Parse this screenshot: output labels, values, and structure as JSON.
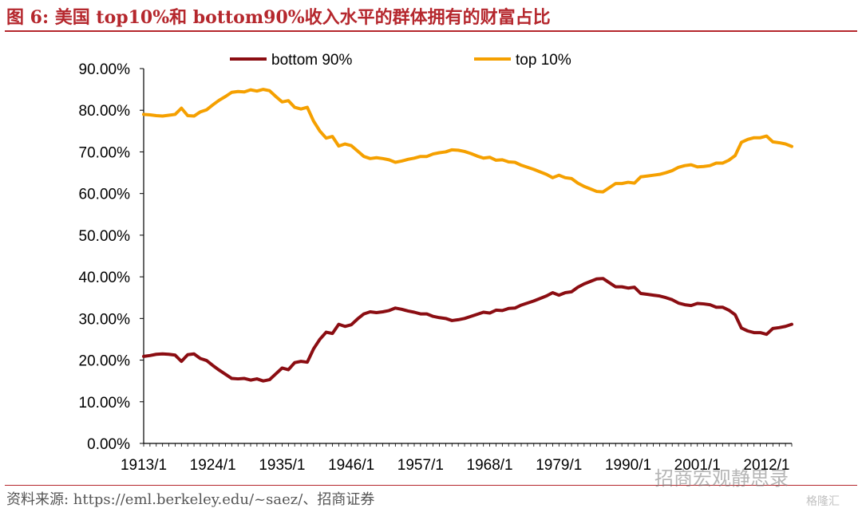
{
  "figure": {
    "title": "图 6:  美国 top10%和 bottom90%收入水平的群体拥有的财富占比",
    "source": "资料来源:  https://eml.berkeley.edu/~saez/、招商证券",
    "watermark": "招商宏观静思录",
    "watermark_corner": "格隆汇"
  },
  "chart_data": {
    "type": "line",
    "title": "",
    "xlabel": "",
    "ylabel": "",
    "x_range": [
      1913,
      2016
    ],
    "ylim": [
      0,
      90
    ],
    "grid": false,
    "legend": "top",
    "x_tick_labels": [
      "1913/1",
      "1924/1",
      "1935/1",
      "1946/1",
      "1957/1",
      "1968/1",
      "1979/1",
      "1990/1",
      "2001/1",
      "2012/1"
    ],
    "y_tick_labels": [
      "0.00%",
      "10.00%",
      "20.00%",
      "30.00%",
      "40.00%",
      "50.00%",
      "60.00%",
      "70.00%",
      "80.00%",
      "90.00%"
    ],
    "colors": {
      "bottom": "#8b0d12",
      "top": "#f5a000"
    },
    "series": [
      {
        "name": "bottom 90%",
        "x": [
          1913,
          1914,
          1915,
          1916,
          1917,
          1918,
          1919,
          1920,
          1921,
          1922,
          1923,
          1924,
          1925,
          1926,
          1927,
          1928,
          1929,
          1930,
          1931,
          1932,
          1933,
          1934,
          1935,
          1936,
          1937,
          1938,
          1939,
          1940,
          1941,
          1942,
          1943,
          1944,
          1945,
          1946,
          1947,
          1948,
          1949,
          1950,
          1951,
          1952,
          1953,
          1954,
          1955,
          1956,
          1957,
          1958,
          1959,
          1960,
          1961,
          1962,
          1963,
          1964,
          1965,
          1966,
          1967,
          1968,
          1969,
          1970,
          1971,
          1972,
          1973,
          1974,
          1975,
          1976,
          1977,
          1978,
          1979,
          1980,
          1981,
          1982,
          1983,
          1984,
          1985,
          1986,
          1987,
          1988,
          1989,
          1990,
          1991,
          1992,
          1993,
          1994,
          1995,
          1996,
          1997,
          1998,
          1999,
          2000,
          2001,
          2002,
          2003,
          2004,
          2005,
          2006,
          2007,
          2008,
          2009,
          2010,
          2011,
          2012,
          2013,
          2014,
          2015,
          2016
        ],
        "values": [
          20.9,
          21.1,
          21.4,
          21.5,
          21.4,
          21.2,
          19.7,
          21.3,
          21.5,
          20.4,
          19.9,
          18.7,
          17.6,
          16.6,
          15.6,
          15.5,
          15.6,
          15.2,
          15.5,
          15.0,
          15.3,
          16.7,
          18.1,
          17.7,
          19.4,
          19.7,
          19.5,
          22.7,
          25.0,
          26.7,
          26.4,
          28.6,
          28.1,
          28.5,
          29.9,
          31.1,
          31.6,
          31.4,
          31.6,
          31.9,
          32.5,
          32.2,
          31.8,
          31.5,
          31.1,
          31.1,
          30.5,
          30.2,
          30.0,
          29.5,
          29.7,
          30.0,
          30.5,
          31.0,
          31.5,
          31.3,
          32.0,
          31.9,
          32.4,
          32.5,
          33.2,
          33.7,
          34.2,
          34.8,
          35.4,
          36.2,
          35.6,
          36.2,
          36.4,
          37.5,
          38.3,
          38.9,
          39.5,
          39.6,
          38.6,
          37.6,
          37.6,
          37.3,
          37.5,
          36.0,
          35.8,
          35.6,
          35.4,
          35.0,
          34.5,
          33.7,
          33.3,
          33.1,
          33.6,
          33.5,
          33.3,
          32.7,
          32.7,
          32.0,
          30.9,
          27.7,
          27.0,
          26.6,
          26.6,
          26.2,
          27.6,
          27.8,
          28.1,
          28.6
        ]
      },
      {
        "name": "top 10%",
        "x": [
          1913,
          1914,
          1915,
          1916,
          1917,
          1918,
          1919,
          1920,
          1921,
          1922,
          1923,
          1924,
          1925,
          1926,
          1927,
          1928,
          1929,
          1930,
          1931,
          1932,
          1933,
          1934,
          1935,
          1936,
          1937,
          1938,
          1939,
          1940,
          1941,
          1942,
          1943,
          1944,
          1945,
          1946,
          1947,
          1948,
          1949,
          1950,
          1951,
          1952,
          1953,
          1954,
          1955,
          1956,
          1957,
          1958,
          1959,
          1960,
          1961,
          1962,
          1963,
          1964,
          1965,
          1966,
          1967,
          1968,
          1969,
          1970,
          1971,
          1972,
          1973,
          1974,
          1975,
          1976,
          1977,
          1978,
          1979,
          1980,
          1981,
          1982,
          1983,
          1984,
          1985,
          1986,
          1987,
          1988,
          1989,
          1990,
          1991,
          1992,
          1993,
          1994,
          1995,
          1996,
          1997,
          1998,
          1999,
          2000,
          2001,
          2002,
          2003,
          2004,
          2005,
          2006,
          2007,
          2008,
          2009,
          2010,
          2011,
          2012,
          2013,
          2014,
          2015,
          2016
        ],
        "values": [
          79.0,
          78.9,
          78.7,
          78.6,
          78.8,
          79.0,
          80.5,
          78.7,
          78.6,
          79.6,
          80.1,
          81.3,
          82.4,
          83.3,
          84.3,
          84.5,
          84.4,
          84.9,
          84.6,
          85.0,
          84.7,
          83.3,
          82.0,
          82.3,
          80.7,
          80.3,
          80.7,
          77.4,
          75.0,
          73.3,
          73.7,
          71.4,
          71.9,
          71.5,
          70.2,
          68.9,
          68.4,
          68.6,
          68.4,
          68.1,
          67.5,
          67.8,
          68.2,
          68.5,
          68.9,
          68.9,
          69.5,
          69.8,
          70.0,
          70.5,
          70.4,
          70.1,
          69.6,
          69.0,
          68.5,
          68.7,
          68.0,
          68.1,
          67.6,
          67.5,
          66.8,
          66.3,
          65.8,
          65.2,
          64.6,
          63.8,
          64.4,
          63.8,
          63.6,
          62.5,
          61.7,
          61.1,
          60.5,
          60.4,
          61.4,
          62.4,
          62.4,
          62.7,
          62.5,
          64.0,
          64.2,
          64.4,
          64.6,
          65.0,
          65.5,
          66.3,
          66.7,
          66.9,
          66.4,
          66.5,
          66.7,
          67.3,
          67.3,
          68.0,
          69.1,
          72.3,
          73.0,
          73.4,
          73.4,
          73.8,
          72.4,
          72.2,
          71.9,
          71.3
        ]
      }
    ]
  }
}
